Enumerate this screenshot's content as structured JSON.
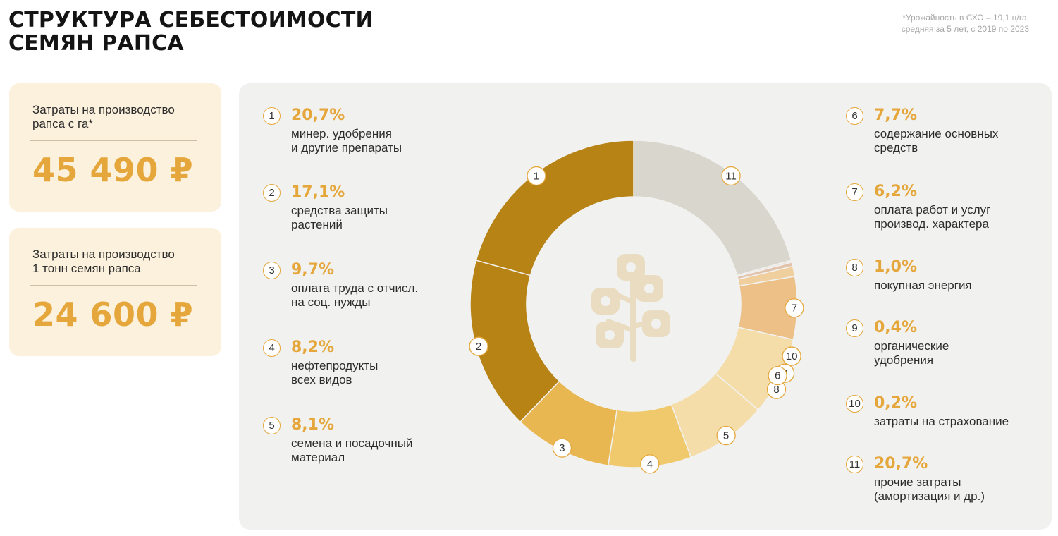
{
  "header": {
    "title_line1": "СТРУКТУРА СЕБЕСТОИМОСТИ",
    "title_line2": "СЕМЯН РАПСА",
    "footnote_line1": "*Урожайность в СХО – 19,1 ц/га,",
    "footnote_line2": "средняя за 5 лет, с 2019 по 2023"
  },
  "cards": [
    {
      "label_line1": "Затраты на производство",
      "label_line2": "рапса с га*",
      "value": "45 490 ₽"
    },
    {
      "label_line1": "Затраты на производство",
      "label_line2": "1 тонн семян рапса",
      "value": "24 600 ₽"
    }
  ],
  "colors": {
    "accent": "#e5a73b",
    "slice_1": "#b78315",
    "slice_2": "#b78315",
    "slice_3": "#e9b751",
    "slice_4": "#efc96c",
    "slice_5": "#f4dda8",
    "slice_6": "#f4dda8",
    "slice_7": "#ecc087",
    "slice_8": "#efcf9d",
    "slice_9": "#e2c2ab",
    "slice_10": "#ede4dc",
    "slice_11": "#d9d6cd",
    "center_icon": "#eadcc0"
  },
  "center_icon": "rapeseed-plant-icon",
  "legend": [
    {
      "num": "1",
      "pct": "20,7%",
      "line1": "минер. удобрения",
      "line2": "и другие препараты"
    },
    {
      "num": "2",
      "pct": "17,1%",
      "line1": "средства защиты",
      "line2": "растений"
    },
    {
      "num": "3",
      "pct": "9,7%",
      "line1": "оплата труда с отчисл.",
      "line2": "на соц. нужды"
    },
    {
      "num": "4",
      "pct": "8,2%",
      "line1": "нефтепродукты",
      "line2": "всех видов"
    },
    {
      "num": "5",
      "pct": "8,1%",
      "line1": "семена и посадочный",
      "line2": "материал"
    },
    {
      "num": "6",
      "pct": "7,7%",
      "line1": "содержание основных",
      "line2": "средств"
    },
    {
      "num": "7",
      "pct": "6,2%",
      "line1": "оплата работ и услуг",
      "line2": "производ. характера"
    },
    {
      "num": "8",
      "pct": "1,0%",
      "line1": "покупная энергия",
      "line2": ""
    },
    {
      "num": "9",
      "pct": "0,4%",
      "line1": "органические",
      "line2": "удобрения"
    },
    {
      "num": "10",
      "pct": "0,2%",
      "line1": "затраты на страхование",
      "line2": ""
    },
    {
      "num": "11",
      "pct": "20,7%",
      "line1": "прочие затраты",
      "line2": "(амортизация и др.)"
    }
  ],
  "chart_data": {
    "type": "pie",
    "categories": [
      "1",
      "2",
      "3",
      "4",
      "5",
      "6",
      "7",
      "8",
      "9",
      "10",
      "11"
    ],
    "values": [
      20.7,
      17.1,
      9.7,
      8.2,
      8.1,
      7.7,
      6.2,
      1.0,
      0.4,
      0.2,
      20.7
    ],
    "unit": "%"
  }
}
